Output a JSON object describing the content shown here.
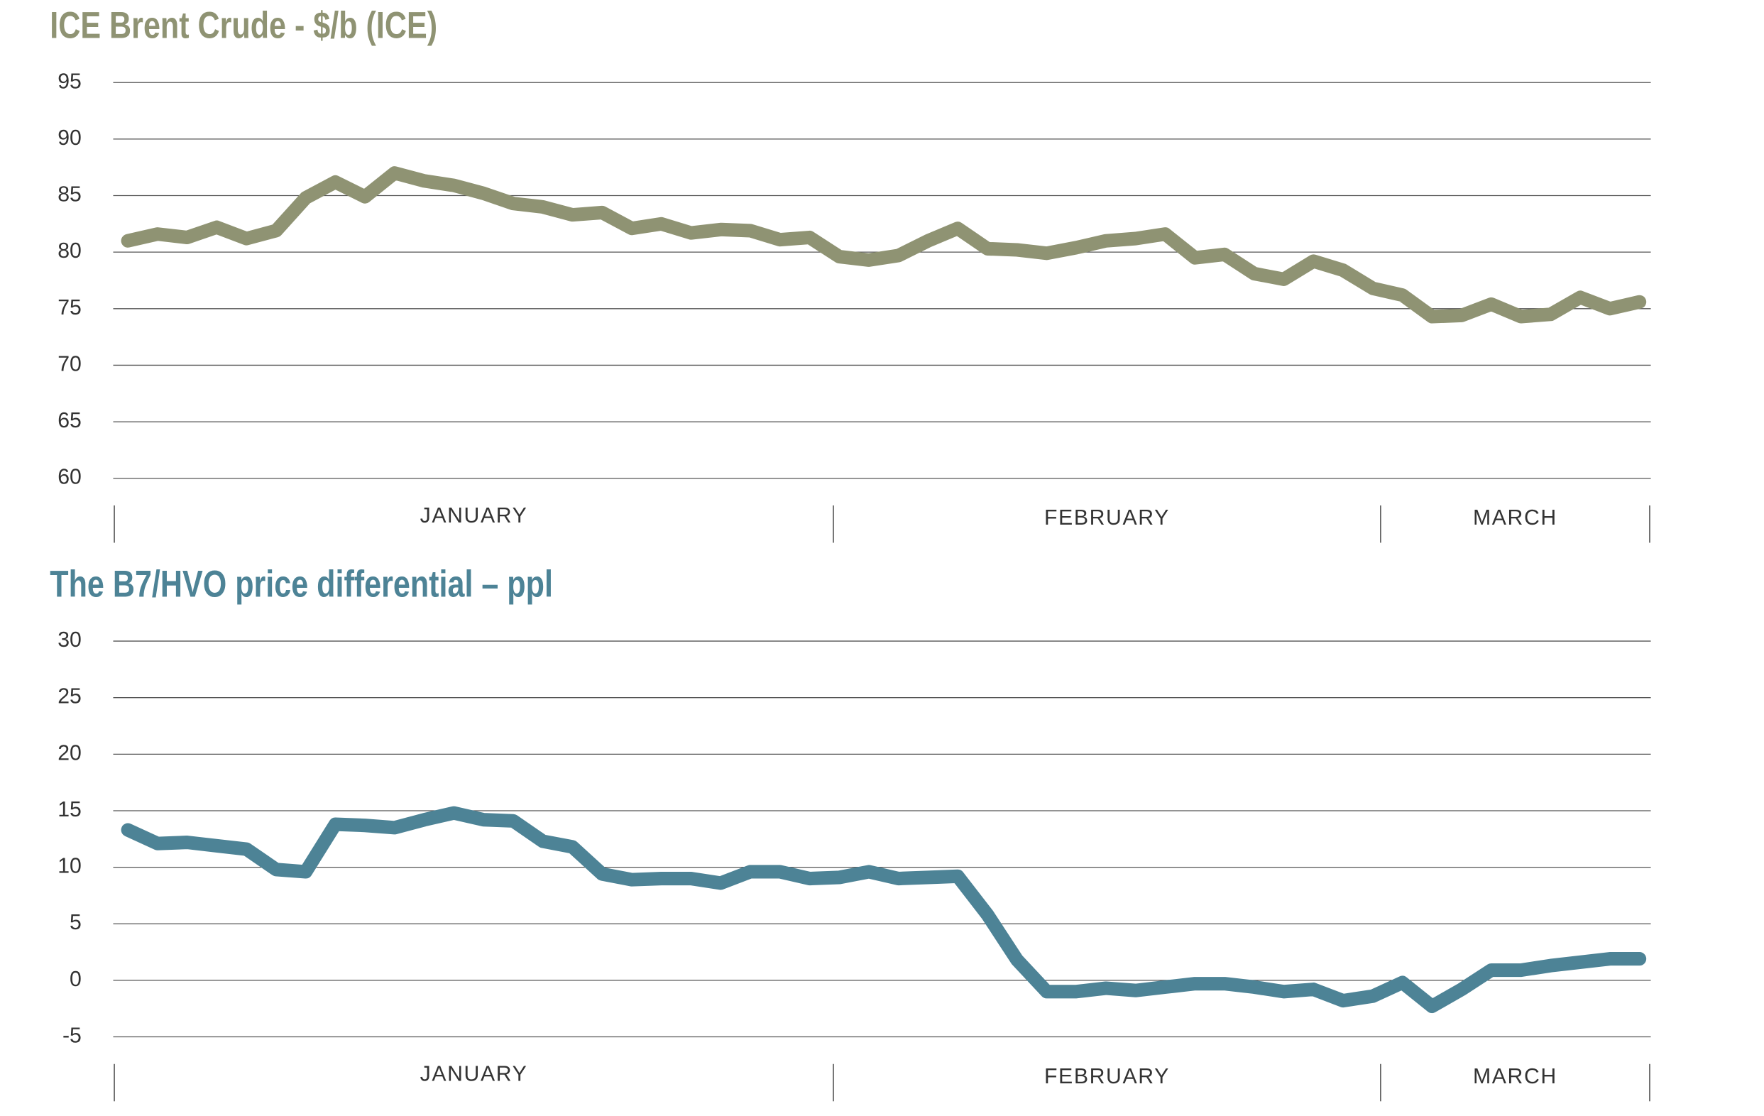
{
  "chart_data": [
    {
      "type": "line",
      "title": "ICE Brent Crude - $/b (ICE)",
      "color": "#8f9373",
      "month_labels": [
        "JANUARY",
        "FEBRUARY",
        "MARCH"
      ],
      "values": [
        81,
        81.6,
        81.3,
        82.2,
        81.2,
        81.9,
        84.8,
        86.2,
        84.9,
        87,
        86.3,
        85.9,
        85.2,
        84.3,
        84,
        83.3,
        83.5,
        82.1,
        82.5,
        81.7,
        82,
        81.9,
        81.1,
        81.3,
        79.6,
        79.3,
        79.7,
        81,
        82.1,
        80.3,
        80.2,
        79.9,
        80.4,
        81,
        81.2,
        81.6,
        79.5,
        79.8,
        78.1,
        77.6,
        79.2,
        78.4,
        76.8,
        76.2,
        74.3,
        74.4,
        75.4,
        74.3,
        74.5,
        76,
        75,
        75.6
      ],
      "ylim": [
        60,
        95
      ],
      "yticks": [
        60,
        65,
        70,
        75,
        80,
        85,
        90,
        95
      ],
      "grid": true
    },
    {
      "type": "line",
      "title": "The B7/HVO price differential – ppl",
      "color": "#4d8396",
      "month_labels": [
        "JANUARY",
        "FEBRUARY",
        "MARCH"
      ],
      "values": [
        13.3,
        12.1,
        12.2,
        11.9,
        11.6,
        9.8,
        9.6,
        13.8,
        13.7,
        13.5,
        14.2,
        14.8,
        14.2,
        14.1,
        12.3,
        11.8,
        9.4,
        8.9,
        9,
        9,
        8.6,
        9.6,
        9.6,
        9,
        9.1,
        9.6,
        9,
        9.1,
        9.2,
        5.8,
        1.8,
        -1,
        -1,
        -0.7,
        -0.9,
        -0.6,
        -0.3,
        -0.3,
        -0.6,
        -1,
        -0.8,
        -1.8,
        -1.4,
        -0.2,
        -2.3,
        -0.8,
        0.9,
        0.9,
        1.3,
        1.6,
        1.9,
        1.9
      ],
      "ylim": [
        -5,
        30
      ],
      "yticks": [
        -5,
        0,
        5,
        10,
        15,
        20,
        25,
        30
      ],
      "grid": true
    }
  ]
}
